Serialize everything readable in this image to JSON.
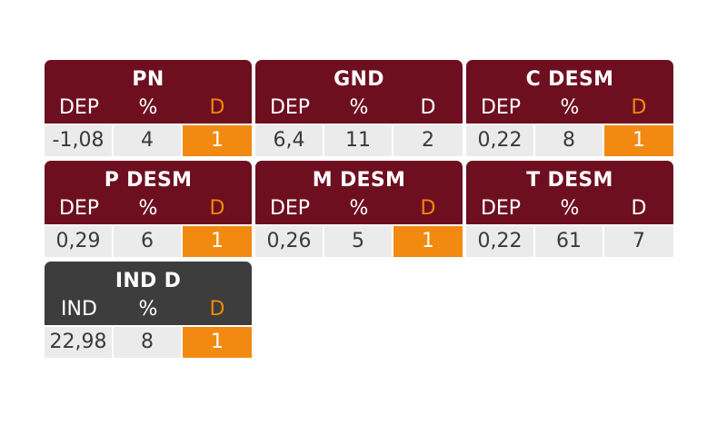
{
  "cards": [
    {
      "title": "PN",
      "theme": "maroon",
      "headers": [
        "DEP",
        "%",
        "D"
      ],
      "d_highlight": true,
      "values": [
        "-1,08",
        "4",
        "1"
      ],
      "d_cell_highlight": true
    },
    {
      "title": "GND",
      "theme": "maroon",
      "headers": [
        "DEP",
        "%",
        "D"
      ],
      "d_highlight": false,
      "values": [
        "6,4",
        "11",
        "2"
      ],
      "d_cell_highlight": false
    },
    {
      "title": "C DESM",
      "theme": "maroon",
      "headers": [
        "DEP",
        "%",
        "D"
      ],
      "d_highlight": true,
      "values": [
        "0,22",
        "8",
        "1"
      ],
      "d_cell_highlight": true
    },
    {
      "title": "P DESM",
      "theme": "maroon",
      "headers": [
        "DEP",
        "%",
        "D"
      ],
      "d_highlight": true,
      "values": [
        "0,29",
        "6",
        "1"
      ],
      "d_cell_highlight": true
    },
    {
      "title": "M DESM",
      "theme": "maroon",
      "headers": [
        "DEP",
        "%",
        "D"
      ],
      "d_highlight": true,
      "values": [
        "0,26",
        "5",
        "1"
      ],
      "d_cell_highlight": true
    },
    {
      "title": "T DESM",
      "theme": "maroon",
      "headers": [
        "DEP",
        "%",
        "D"
      ],
      "d_highlight": false,
      "values": [
        "0,22",
        "61",
        "7"
      ],
      "d_cell_highlight": false
    },
    {
      "title": "IND D",
      "theme": "dark",
      "headers": [
        "IND",
        "%",
        "D"
      ],
      "d_highlight": true,
      "values": [
        "22,98",
        "8",
        "1"
      ],
      "d_cell_highlight": true
    }
  ],
  "colors": {
    "maroon_header": "#6e0f20",
    "dark_header": "#3d3d3d",
    "cell_background": "#ebebeb",
    "highlight_orange": "#f28a12"
  }
}
